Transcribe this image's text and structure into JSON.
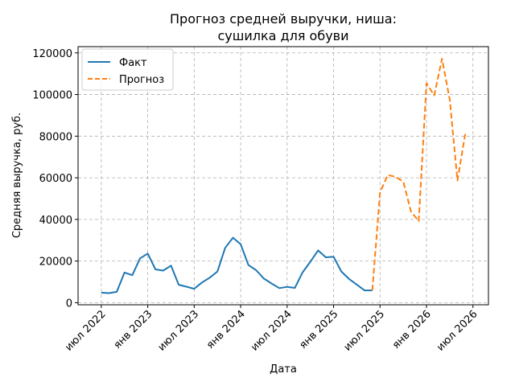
{
  "chart_data": {
    "type": "line",
    "title_lines": [
      "Прогноз средней выручки, ниша:",
      "сушилка для обуви"
    ],
    "xlabel": "Дата",
    "ylabel": "Средняя выручка, руб.",
    "x_ticks": [
      {
        "date": "2022-07",
        "label": "июл 2022"
      },
      {
        "date": "2023-01",
        "label": "янв 2023"
      },
      {
        "date": "2023-07",
        "label": "июл 2023"
      },
      {
        "date": "2024-01",
        "label": "янв 2024"
      },
      {
        "date": "2024-07",
        "label": "июл 2024"
      },
      {
        "date": "2025-01",
        "label": "янв 2025"
      },
      {
        "date": "2025-07",
        "label": "июл 2025"
      },
      {
        "date": "2026-01",
        "label": "янв 2026"
      },
      {
        "date": "2026-07",
        "label": "июл 2026"
      }
    ],
    "y_ticks": [
      {
        "value": 0,
        "label": "0"
      },
      {
        "value": 20000,
        "label": "20000"
      },
      {
        "value": 40000,
        "label": "40000"
      },
      {
        "value": 60000,
        "label": "60000"
      },
      {
        "value": 80000,
        "label": "80000"
      },
      {
        "value": 100000,
        "label": "100000"
      },
      {
        "value": 120000,
        "label": "120000"
      }
    ],
    "xlim": [
      "2022-04",
      "2026-09"
    ],
    "ylim": [
      -1000,
      123000
    ],
    "grid": true,
    "legend_position": "top-left",
    "series": [
      {
        "name": "Факт",
        "color": "#1f77b4",
        "style": "solid",
        "points": [
          [
            "2022-07",
            4800
          ],
          [
            "2022-08",
            4600
          ],
          [
            "2022-09",
            5200
          ],
          [
            "2022-10",
            14500
          ],
          [
            "2022-11",
            13200
          ],
          [
            "2022-12",
            21300
          ],
          [
            "2023-01",
            23600
          ],
          [
            "2023-02",
            16000
          ],
          [
            "2023-03",
            15400
          ],
          [
            "2023-04",
            17800
          ],
          [
            "2023-05",
            8600
          ],
          [
            "2023-06",
            7700
          ],
          [
            "2023-07",
            6700
          ],
          [
            "2023-08",
            9700
          ],
          [
            "2023-09",
            12000
          ],
          [
            "2023-10",
            15000
          ],
          [
            "2023-11",
            26300
          ],
          [
            "2023-12",
            31200
          ],
          [
            "2024-01",
            28100
          ],
          [
            "2024-02",
            18100
          ],
          [
            "2024-03",
            15600
          ],
          [
            "2024-04",
            11600
          ],
          [
            "2024-05",
            9200
          ],
          [
            "2024-06",
            7000
          ],
          [
            "2024-07",
            7600
          ],
          [
            "2024-08",
            7100
          ],
          [
            "2024-09",
            14600
          ],
          [
            "2024-10",
            19700
          ],
          [
            "2024-11",
            25100
          ],
          [
            "2024-12",
            21800
          ],
          [
            "2025-01",
            22100
          ],
          [
            "2025-02",
            15000
          ],
          [
            "2025-03",
            11400
          ],
          [
            "2025-04",
            8700
          ],
          [
            "2025-05",
            5900
          ],
          [
            "2025-06",
            5900
          ]
        ]
      },
      {
        "name": "Прогноз",
        "color": "#ff7f0e",
        "style": "dashed",
        "points": [
          [
            "2025-06",
            5900
          ],
          [
            "2025-07",
            53000
          ],
          [
            "2025-08",
            61300
          ],
          [
            "2025-09",
            60500
          ],
          [
            "2025-10",
            58100
          ],
          [
            "2025-11",
            43700
          ],
          [
            "2025-12",
            39200
          ],
          [
            "2026-01",
            105400
          ],
          [
            "2026-02",
            99600
          ],
          [
            "2026-03",
            117200
          ],
          [
            "2026-04",
            97600
          ],
          [
            "2026-05",
            58700
          ],
          [
            "2026-06",
            81000
          ]
        ]
      }
    ]
  }
}
